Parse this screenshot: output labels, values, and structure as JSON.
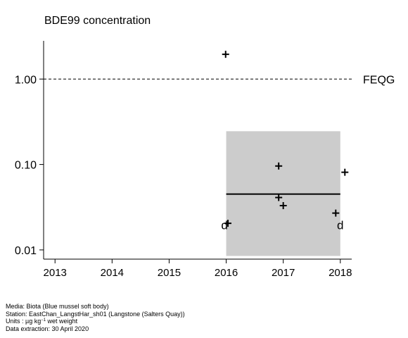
{
  "chart_data": {
    "type": "scatter",
    "title": "BDE99 concentration",
    "xlabel": "",
    "ylabel": "",
    "y_scale": "log",
    "xlim": [
      2012.8,
      2018.2
    ],
    "ylim": [
      0.0078,
      2.8
    ],
    "x_ticks": [
      2013,
      2014,
      2015,
      2016,
      2017,
      2018
    ],
    "x_tick_labels": [
      "2013",
      "2014",
      "2015",
      "2016",
      "2017",
      "2018"
    ],
    "y_ticks": [
      0.01,
      0.1,
      1.0
    ],
    "y_tick_labels": [
      "0.01",
      "0.10",
      "1.00"
    ],
    "grid": false,
    "reference_line": {
      "label": "FEQG",
      "value": 1.0,
      "style": "dashed"
    },
    "points": [
      {
        "x": 2015.99,
        "y": 1.95,
        "marker": "+"
      },
      {
        "x": 2016.03,
        "y": 0.0205,
        "marker": "+"
      },
      {
        "x": 2016.92,
        "y": 0.096,
        "marker": "+"
      },
      {
        "x": 2016.92,
        "y": 0.041,
        "marker": "+"
      },
      {
        "x": 2017.0,
        "y": 0.033,
        "marker": "+"
      },
      {
        "x": 2017.92,
        "y": 0.027,
        "marker": "+"
      },
      {
        "x": 2018.08,
        "y": 0.081,
        "marker": "+"
      }
    ],
    "detection_limit_points": [
      {
        "x": 2015.97,
        "y": 0.0195,
        "marker": "d"
      },
      {
        "x": 2018.0,
        "y": 0.0195,
        "marker": "d"
      }
    ],
    "trend_band": {
      "x": [
        2016.0,
        2018.0
      ],
      "y_low": 0.0085,
      "y_high": 0.245,
      "color": "#cccccc"
    },
    "trend_line": {
      "x": [
        2016.0,
        2018.0
      ],
      "y": 0.045
    }
  },
  "footer": {
    "media": "Media: Biota (Blue mussel soft body)",
    "station": "Station: EastChan_LangstHar_sh01 (Langstone (Salters Quay))",
    "units_prefix": "Units : µg kg",
    "units_exp": "−1",
    "units_suffix": " wet weight",
    "extraction": "Data extraction: 30 April 2020"
  }
}
